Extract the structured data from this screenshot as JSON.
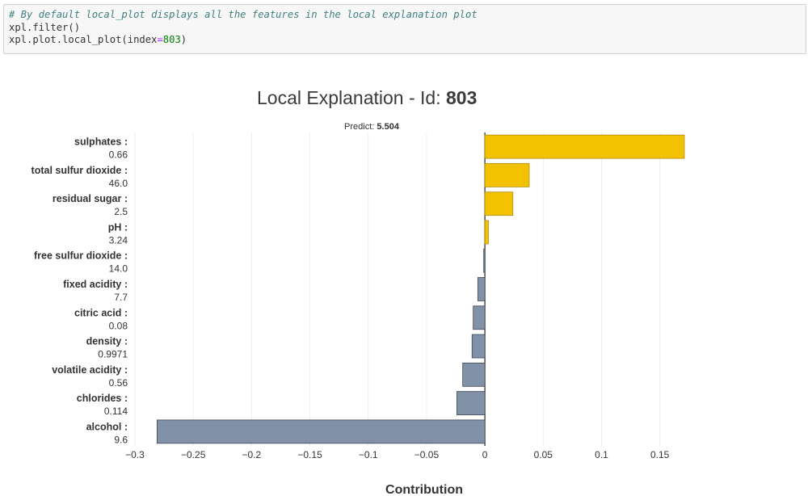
{
  "code_cell": {
    "comment": "# By default local_plot displays all the features in the local explanation plot",
    "line1": "xpl.filter()",
    "line2_prefix": "xpl.plot.local_plot(index",
    "line2_eq": "=",
    "line2_num": "803",
    "line2_suffix": ")"
  },
  "chart_data": {
    "type": "bar",
    "orientation": "horizontal",
    "title": "Local Explanation - Id: ",
    "title_id": "803",
    "subtitle_label": "Predict: ",
    "subtitle_value": "5.504",
    "xlabel": "Contribution",
    "xlim": [
      -0.3,
      0.18
    ],
    "xticks": [
      -0.3,
      -0.25,
      -0.2,
      -0.15,
      -0.1,
      -0.05,
      0,
      0.05,
      0.1,
      0.15
    ],
    "xtick_labels": [
      "−0.3",
      "−0.25",
      "−0.2",
      "−0.15",
      "−0.1",
      "−0.05",
      "0",
      "0.05",
      "0.1",
      "0.15"
    ],
    "grid": true,
    "features": [
      {
        "name": "sulphates :",
        "value": "0.66",
        "contribution": 0.171
      },
      {
        "name": "total sulfur dioxide :",
        "value": "46.0",
        "contribution": 0.038
      },
      {
        "name": "residual sugar :",
        "value": "2.5",
        "contribution": 0.024
      },
      {
        "name": "pH :",
        "value": "3.24",
        "contribution": 0.003
      },
      {
        "name": "free sulfur dioxide :",
        "value": "14.0",
        "contribution": -0.001
      },
      {
        "name": "fixed acidity :",
        "value": "7.7",
        "contribution": -0.006
      },
      {
        "name": "citric acid :",
        "value": "0.08",
        "contribution": -0.01
      },
      {
        "name": "density :",
        "value": "0.9971",
        "contribution": -0.011
      },
      {
        "name": "volatile acidity :",
        "value": "0.56",
        "contribution": -0.019
      },
      {
        "name": "chlorides :",
        "value": "0.114",
        "contribution": -0.024
      },
      {
        "name": "alcohol :",
        "value": "9.6",
        "contribution": -0.281
      }
    ],
    "colors": {
      "positive": "#f2c100",
      "positive_border": "#b08c0a",
      "negative": "#8091a8",
      "negative_border": "#3d4554",
      "grid": "#eeeeee",
      "text": "#333333",
      "title": "#3a3a3a"
    }
  }
}
